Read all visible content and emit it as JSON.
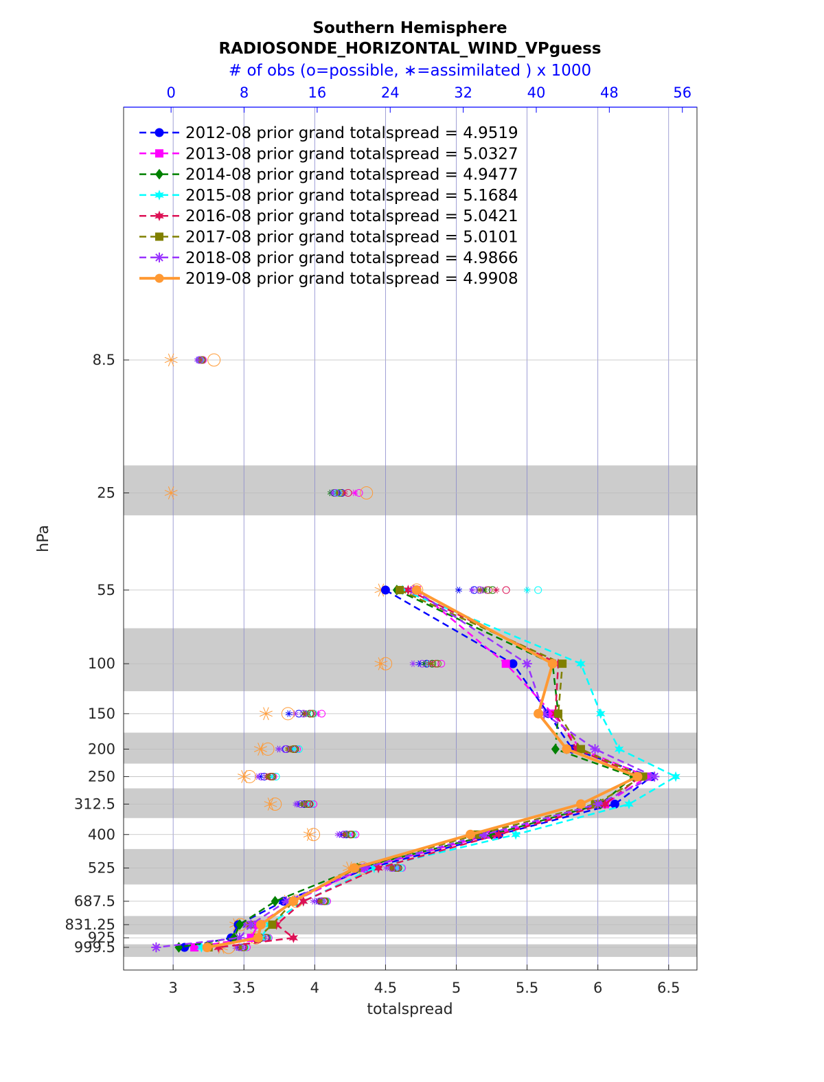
{
  "chart_data": {
    "type": "line",
    "title": "Southern Hemisphere",
    "subtitle": "RADIOSONDE_HORIZONTAL_WIND_VPguess",
    "xlabel": "totalspread",
    "ylabel": "hPa",
    "top_axis_label": "# of obs (o=possible, ∗=assimilated ) x 1000",
    "xlim": [
      2.65,
      6.7
    ],
    "x_ticks": [
      "3",
      "3.5",
      "4",
      "4.5",
      "5",
      "5.5",
      "6",
      "6.5"
    ],
    "top_xlim": [
      -5.2,
      57.6
    ],
    "top_ticks": [
      "0",
      "8",
      "16",
      "24",
      "32",
      "40",
      "48",
      "56"
    ],
    "y_scale": "log",
    "ylim": [
      1080,
      0
    ],
    "y_ticks": [
      "8.5",
      "25",
      "55",
      "100",
      "150",
      "200",
      "250",
      "312.5",
      "400",
      "525",
      "687.5",
      "831.25",
      "925",
      "999.5"
    ],
    "levels": [
      8.5,
      25,
      55,
      100,
      150,
      200,
      250,
      312.5,
      400,
      525,
      687.5,
      831.25,
      925,
      999.5
    ],
    "shaded_bands": [
      [
        20,
        30
      ],
      [
        75,
        125
      ],
      [
        175,
        225
      ],
      [
        275,
        350
      ],
      [
        450,
        600
      ],
      [
        775,
        900
      ],
      [
        975,
        1080
      ]
    ],
    "grid": true,
    "legend_position": "top-left",
    "obs_levels": [
      8.5,
      25,
      55,
      100,
      150,
      200,
      250,
      312.5,
      400,
      525,
      687.5,
      831.25,
      925,
      999.5
    ],
    "series": [
      {
        "name": "2012-08 prior grand totalspread = 4.9519",
        "color": "#0000ff",
        "marker": "circle",
        "dash": true,
        "levels": [
          55,
          100,
          150,
          200,
          250,
          312.5,
          400,
          525,
          687.5,
          831.25,
          925,
          999.5
        ],
        "values": [
          4.5,
          5.4,
          5.65,
          5.82,
          6.38,
          6.12,
          5.3,
          4.38,
          3.78,
          3.46,
          3.41,
          3.08
        ],
        "obs_possible": [
          3.4,
          18.7,
          33.2,
          28.0,
          14.0,
          12.6,
          10.2,
          14.6,
          19.2,
          24.6,
          16.5,
          8.6,
          10.4,
          7.8
        ],
        "obs_assimilated": [
          3.2,
          18.4,
          31.5,
          27.2,
          12.9,
          11.8,
          9.8,
          13.9,
          18.6,
          24.1,
          16.0,
          8.1,
          10.0,
          7.3
        ]
      },
      {
        "name": "2013-08 prior grand totalspread = 5.0327",
        "color": "#ff00ff",
        "marker": "square",
        "dash": true,
        "levels": [
          55,
          100,
          150,
          200,
          250,
          312.5,
          400,
          525,
          687.5,
          831.25,
          925,
          999.5
        ],
        "values": [
          4.72,
          5.35,
          5.68,
          5.88,
          6.35,
          6.05,
          5.25,
          4.35,
          3.85,
          3.6,
          3.55,
          3.15
        ],
        "obs_possible": [
          3.5,
          20.6,
          34.6,
          29.6,
          16.5,
          13.8,
          11.2,
          15.6,
          20.2,
          25.3,
          17.1,
          9.0,
          10.7,
          8.3
        ],
        "obs_assimilated": [
          3.3,
          20.1,
          34.0,
          28.4,
          16.0,
          13.3,
          10.7,
          15.0,
          19.6,
          24.7,
          16.6,
          8.6,
          10.3,
          7.9
        ]
      },
      {
        "name": "2014-08 prior grand totalspread = 4.9477",
        "color": "#008000",
        "marker": "diamond",
        "dash": true,
        "levels": [
          55,
          100,
          150,
          200,
          250,
          312.5,
          400,
          525,
          687.5,
          831.25,
          925,
          999.5
        ],
        "values": [
          4.58,
          5.68,
          5.72,
          5.7,
          6.25,
          6.02,
          5.25,
          4.3,
          3.72,
          3.47,
          3.43,
          3.04
        ],
        "obs_possible": [
          3.3,
          17.9,
          35.2,
          28.6,
          15.2,
          13.6,
          11.0,
          15.1,
          19.7,
          24.9,
          16.8,
          8.8,
          10.5,
          8.0
        ],
        "obs_assimilated": [
          3.1,
          17.5,
          34.3,
          27.8,
          14.6,
          13.0,
          10.6,
          14.5,
          19.1,
          24.3,
          16.3,
          8.4,
          10.1,
          7.6
        ]
      },
      {
        "name": "2015-08 prior grand totalspread = 5.1684",
        "color": "#00ffff",
        "marker": "hexagram",
        "dash": true,
        "levels": [
          55,
          100,
          150,
          200,
          250,
          312.5,
          400,
          525,
          687.5,
          831.25,
          925,
          999.5
        ],
        "values": [
          4.62,
          5.88,
          6.02,
          6.15,
          6.55,
          6.22,
          5.42,
          4.42,
          3.92,
          3.68,
          3.62,
          3.2
        ],
        "obs_possible": [
          3.2,
          18.3,
          40.2,
          29.2,
          15.6,
          14.0,
          11.5,
          15.4,
          20.0,
          25.2,
          17.0,
          9.2,
          10.6,
          8.1
        ],
        "obs_assimilated": [
          3.0,
          18.0,
          39.0,
          28.2,
          15.0,
          13.4,
          11.0,
          14.8,
          19.4,
          24.6,
          16.5,
          8.8,
          10.2,
          7.7
        ]
      },
      {
        "name": "2016-08 prior grand totalspread = 5.0421",
        "color": "#dd1155",
        "marker": "hexagram",
        "dash": true,
        "levels": [
          55,
          100,
          150,
          200,
          250,
          312.5,
          400,
          525,
          687.5,
          831.25,
          925,
          999.5
        ],
        "values": [
          4.66,
          5.72,
          5.7,
          5.85,
          6.3,
          6.05,
          5.3,
          4.45,
          3.92,
          3.73,
          3.85,
          3.32
        ],
        "obs_possible": [
          3.3,
          19.4,
          36.7,
          29.0,
          15.3,
          13.5,
          10.9,
          15.2,
          19.6,
          24.8,
          16.7,
          8.9,
          10.3,
          7.9
        ],
        "obs_assimilated": [
          3.1,
          19.0,
          35.6,
          28.3,
          14.7,
          12.9,
          10.5,
          14.6,
          19.0,
          24.2,
          16.2,
          8.5,
          9.9,
          7.5
        ]
      },
      {
        "name": "2017-08 prior grand totalspread = 5.0101",
        "color": "#808000",
        "marker": "square",
        "dash": true,
        "levels": [
          55,
          100,
          150,
          200,
          250,
          312.5,
          400,
          525,
          687.5,
          831.25,
          925,
          999.5
        ],
        "values": [
          4.6,
          5.75,
          5.72,
          5.88,
          6.32,
          5.98,
          5.15,
          4.3,
          3.85,
          3.7,
          3.6,
          3.25
        ],
        "obs_possible": [
          3.4,
          18.5,
          34.8,
          29.2,
          15.5,
          13.4,
          11.1,
          14.9,
          19.8,
          24.7,
          16.9,
          8.7,
          10.5,
          8.0
        ],
        "obs_assimilated": [
          3.2,
          18.2,
          33.8,
          28.5,
          14.9,
          12.8,
          10.6,
          14.4,
          19.2,
          24.1,
          16.4,
          8.3,
          10.1,
          7.6
        ]
      },
      {
        "name": "2018-08 prior grand totalspread = 4.9866",
        "color": "#9933ff",
        "marker": "asterisk",
        "dash": true,
        "levels": [
          55,
          100,
          150,
          200,
          250,
          312.5,
          400,
          525,
          687.5,
          831.25,
          925,
          999.5
        ],
        "values": [
          4.7,
          5.5,
          5.62,
          5.98,
          6.4,
          6.0,
          5.2,
          4.35,
          3.8,
          3.55,
          3.47,
          2.88
        ],
        "obs_possible": [
          3.1,
          18.0,
          33.8,
          27.5,
          14.5,
          12.5,
          9.9,
          14.2,
          18.9,
          24.2,
          16.3,
          8.5,
          10.0,
          7.5
        ],
        "obs_assimilated": [
          2.9,
          17.7,
          33.0,
          26.5,
          13.6,
          11.8,
          9.5,
          13.7,
          18.3,
          23.6,
          15.6,
          8.0,
          9.6,
          7.1
        ]
      },
      {
        "name": "2019-08 prior grand totalspread = 4.9908",
        "color": "#ff9933",
        "marker": "circle",
        "dash": false,
        "levels": [
          55,
          100,
          150,
          200,
          250,
          312.5,
          400,
          525,
          687.5,
          831.25,
          925,
          999.5
        ],
        "values": [
          4.72,
          5.68,
          5.58,
          5.78,
          6.28,
          5.88,
          5.1,
          4.28,
          3.85,
          3.62,
          3.6,
          3.24
        ],
        "obs_possible": [
          4.7,
          21.4,
          26.9,
          23.5,
          12.8,
          10.6,
          8.6,
          11.4,
          15.6,
          21.0,
          13.7,
          7.6,
          9.3,
          6.3
        ],
        "obs_assimilated": [
          0.0,
          0.0,
          23.0,
          23.0,
          10.4,
          9.8,
          8.0,
          10.9,
          15.2,
          19.5,
          12.7,
          7.1,
          9.0,
          5.5
        ]
      }
    ]
  }
}
